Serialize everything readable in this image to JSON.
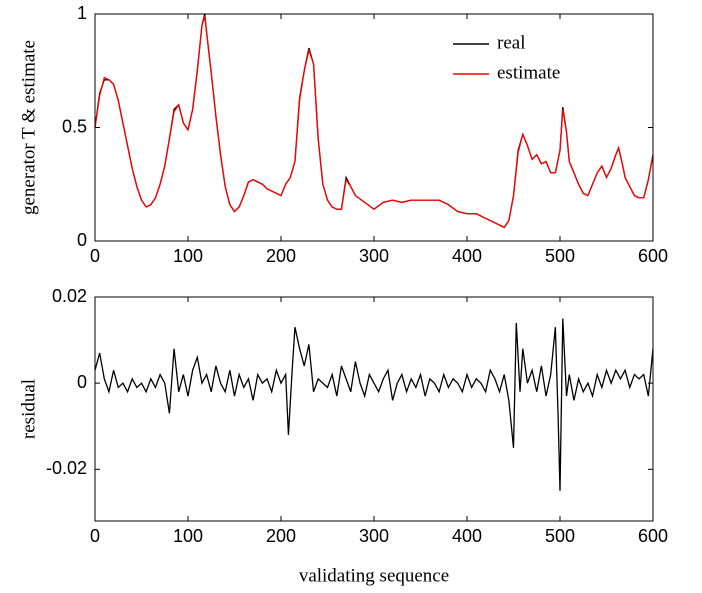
{
  "chart_data": [
    {
      "type": "line",
      "y_label": "generator T & estimate",
      "legend": "upper right",
      "xlim": [
        0,
        600
      ],
      "xticks": [
        0,
        100,
        200,
        300,
        400,
        500,
        600
      ],
      "ylim": [
        0,
        1
      ],
      "yticks": [
        0,
        0.5,
        1
      ],
      "x": [
        0,
        5,
        10,
        15,
        20,
        25,
        30,
        35,
        40,
        45,
        50,
        55,
        60,
        65,
        70,
        75,
        80,
        85,
        90,
        95,
        100,
        105,
        110,
        115,
        118,
        120,
        125,
        130,
        135,
        140,
        145,
        150,
        155,
        160,
        165,
        170,
        175,
        180,
        185,
        190,
        195,
        200,
        205,
        210,
        215,
        220,
        225,
        230,
        235,
        240,
        245,
        250,
        255,
        260,
        265,
        270,
        275,
        280,
        290,
        300,
        310,
        320,
        330,
        340,
        350,
        360,
        370,
        380,
        390,
        400,
        410,
        420,
        430,
        440,
        445,
        450,
        455,
        460,
        465,
        470,
        475,
        480,
        485,
        490,
        495,
        500,
        503,
        507,
        510,
        515,
        520,
        525,
        530,
        535,
        540,
        545,
        550,
        555,
        560,
        563,
        567,
        570,
        575,
        580,
        585,
        590,
        595,
        600
      ],
      "series": [
        {
          "name": "real",
          "color": "#000000",
          "values": [
            0.5,
            0.65,
            0.71,
            0.71,
            0.69,
            0.62,
            0.52,
            0.42,
            0.32,
            0.24,
            0.18,
            0.15,
            0.16,
            0.19,
            0.25,
            0.33,
            0.45,
            0.58,
            0.6,
            0.52,
            0.49,
            0.58,
            0.75,
            0.95,
            1.0,
            0.92,
            0.74,
            0.55,
            0.38,
            0.24,
            0.16,
            0.13,
            0.15,
            0.2,
            0.26,
            0.27,
            0.26,
            0.25,
            0.23,
            0.22,
            0.21,
            0.2,
            0.25,
            0.28,
            0.35,
            0.63,
            0.75,
            0.85,
            0.78,
            0.45,
            0.25,
            0.18,
            0.15,
            0.14,
            0.14,
            0.28,
            0.24,
            0.2,
            0.17,
            0.14,
            0.17,
            0.18,
            0.17,
            0.18,
            0.18,
            0.18,
            0.18,
            0.16,
            0.13,
            0.12,
            0.12,
            0.1,
            0.08,
            0.06,
            0.09,
            0.2,
            0.4,
            0.47,
            0.42,
            0.36,
            0.38,
            0.34,
            0.35,
            0.3,
            0.3,
            0.4,
            0.59,
            0.48,
            0.35,
            0.3,
            0.25,
            0.21,
            0.2,
            0.25,
            0.3,
            0.33,
            0.28,
            0.32,
            0.38,
            0.41,
            0.34,
            0.28,
            0.24,
            0.2,
            0.19,
            0.19,
            0.27,
            0.38
          ]
        },
        {
          "name": "estimate",
          "color": "#ff0000",
          "values": [
            0.5,
            0.64,
            0.72,
            0.71,
            0.69,
            0.62,
            0.52,
            0.42,
            0.32,
            0.24,
            0.18,
            0.15,
            0.16,
            0.19,
            0.25,
            0.33,
            0.45,
            0.57,
            0.6,
            0.52,
            0.49,
            0.58,
            0.75,
            0.95,
            0.99,
            0.92,
            0.74,
            0.55,
            0.38,
            0.24,
            0.16,
            0.13,
            0.15,
            0.2,
            0.26,
            0.27,
            0.26,
            0.25,
            0.23,
            0.22,
            0.21,
            0.2,
            0.25,
            0.28,
            0.35,
            0.62,
            0.75,
            0.84,
            0.78,
            0.45,
            0.25,
            0.18,
            0.15,
            0.14,
            0.14,
            0.27,
            0.24,
            0.2,
            0.17,
            0.14,
            0.17,
            0.18,
            0.17,
            0.18,
            0.18,
            0.18,
            0.18,
            0.16,
            0.13,
            0.12,
            0.12,
            0.1,
            0.08,
            0.06,
            0.09,
            0.2,
            0.39,
            0.47,
            0.42,
            0.36,
            0.38,
            0.34,
            0.35,
            0.3,
            0.3,
            0.4,
            0.58,
            0.48,
            0.35,
            0.3,
            0.25,
            0.21,
            0.2,
            0.25,
            0.3,
            0.33,
            0.28,
            0.32,
            0.38,
            0.41,
            0.34,
            0.28,
            0.24,
            0.2,
            0.19,
            0.19,
            0.27,
            0.38
          ]
        }
      ]
    },
    {
      "type": "line",
      "y_label": "residual",
      "x_label": "validating sequence",
      "xlim": [
        0,
        600
      ],
      "xticks": [
        0,
        100,
        200,
        300,
        400,
        500,
        600
      ],
      "ylim": [
        -0.032,
        0.02
      ],
      "yticks": [
        -0.02,
        0,
        0.02
      ],
      "x": [
        0,
        5,
        10,
        15,
        20,
        25,
        30,
        35,
        40,
        45,
        50,
        55,
        60,
        65,
        70,
        75,
        80,
        85,
        90,
        95,
        100,
        105,
        110,
        115,
        120,
        125,
        130,
        135,
        140,
        145,
        150,
        155,
        160,
        165,
        170,
        175,
        180,
        185,
        190,
        195,
        200,
        205,
        208,
        212,
        215,
        220,
        225,
        230,
        235,
        240,
        245,
        250,
        255,
        260,
        265,
        270,
        275,
        280,
        285,
        290,
        295,
        300,
        305,
        310,
        315,
        320,
        325,
        330,
        335,
        340,
        345,
        350,
        355,
        360,
        365,
        370,
        375,
        380,
        385,
        390,
        395,
        400,
        405,
        410,
        415,
        420,
        425,
        430,
        435,
        440,
        445,
        450,
        453,
        457,
        460,
        465,
        470,
        475,
        480,
        485,
        490,
        495,
        498,
        500,
        503,
        507,
        510,
        515,
        520,
        525,
        530,
        535,
        540,
        545,
        550,
        555,
        560,
        565,
        570,
        575,
        580,
        585,
        590,
        595,
        600
      ],
      "series": [
        {
          "color": "#000000",
          "values": [
            0.003,
            0.007,
            0.001,
            -0.002,
            0.003,
            -0.001,
            0,
            -0.002,
            0.001,
            -0.001,
            0,
            -0.002,
            0.001,
            -0.001,
            0.002,
            0,
            -0.007,
            0.008,
            -0.002,
            0.002,
            -0.003,
            0.003,
            0.006,
            0,
            0.002,
            -0.002,
            0.004,
            0,
            -0.002,
            0.003,
            -0.003,
            0.002,
            -0.001,
            0.001,
            -0.004,
            0.002,
            0,
            0.001,
            -0.002,
            0.003,
            0,
            0.002,
            -0.012,
            0.003,
            0.013,
            0.008,
            0.004,
            0.009,
            -0.002,
            0.001,
            0,
            -0.001,
            0.002,
            -0.003,
            0.004,
            0.001,
            -0.002,
            0.005,
            0,
            -0.003,
            0.002,
            0,
            -0.002,
            0.001,
            0.003,
            -0.004,
            0,
            0.002,
            -0.002,
            0.001,
            -0.001,
            0.002,
            -0.003,
            0.001,
            0,
            -0.002,
            0.002,
            -0.001,
            0.001,
            0,
            -0.002,
            0.002,
            -0.001,
            0.001,
            0,
            -0.002,
            0.003,
            0.001,
            -0.002,
            0.002,
            -0.004,
            -0.015,
            0.014,
            -0.002,
            0.008,
            0,
            0.003,
            -0.002,
            0.004,
            -0.003,
            0.002,
            0.013,
            -0.008,
            -0.025,
            0.015,
            -0.003,
            0.002,
            -0.004,
            0.001,
            -0.002,
            0,
            -0.003,
            0.002,
            -0.001,
            0.003,
            0,
            0.003,
            0.001,
            0.003,
            -0.001,
            0.002,
            0.001,
            0.002,
            -0.003,
            0.008
          ]
        }
      ]
    }
  ]
}
